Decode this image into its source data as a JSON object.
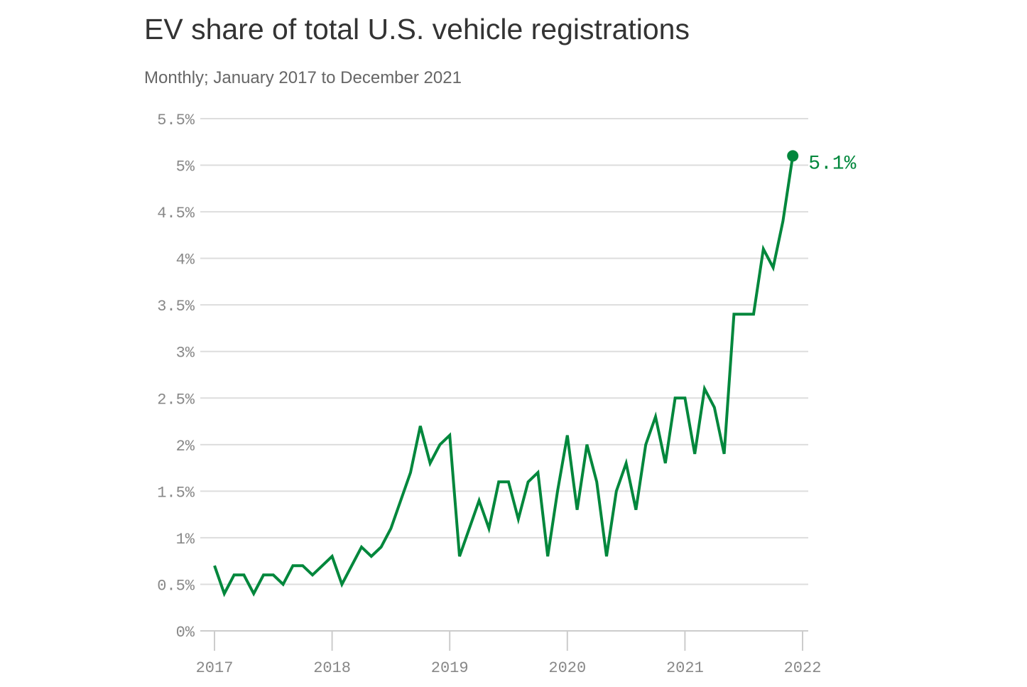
{
  "title": "EV share of total U.S. vehicle registrations",
  "subtitle": "Monthly; January 2017 to December 2021",
  "colors": {
    "line": "#00873c",
    "grid": "#dddddd",
    "axis": "#cccccc",
    "tick_text": "#888888"
  },
  "chart_data": {
    "type": "line",
    "title": "EV share of total U.S. vehicle registrations",
    "subtitle": "Monthly; January 2017 to December 2021",
    "xlabel": "",
    "ylabel": "",
    "x_ticks": [
      "2017",
      "2018",
      "2019",
      "2020",
      "2021",
      "2022"
    ],
    "y_ticks": [
      "0%",
      "0.5%",
      "1%",
      "1.5%",
      "2%",
      "2.5%",
      "3%",
      "3.5%",
      "4%",
      "4.5%",
      "5%",
      "5.5%"
    ],
    "ylim": [
      0,
      5.5
    ],
    "xlim": [
      "2017-01",
      "2022-01"
    ],
    "grid": true,
    "series": [
      {
        "values": [
          0.7,
          0.4,
          0.6,
          0.6,
          0.4,
          0.6,
          0.6,
          0.5,
          0.7,
          0.7,
          0.6,
          0.7,
          0.8,
          0.5,
          0.7,
          0.9,
          0.8,
          0.9,
          1.1,
          1.4,
          1.7,
          2.2,
          1.8,
          2.0,
          2.1,
          0.8,
          1.1,
          1.4,
          1.1,
          1.6,
          1.6,
          1.2,
          1.6,
          1.7,
          0.8,
          1.5,
          2.1,
          1.3,
          2.0,
          1.6,
          0.8,
          1.5,
          1.8,
          1.3,
          2.0,
          2.3,
          1.8,
          2.5,
          2.5,
          1.9,
          2.6,
          2.4,
          1.9,
          3.4,
          3.4,
          3.4,
          4.1,
          3.9,
          4.4,
          5.1
        ]
      }
    ],
    "end_label": "5.1%"
  }
}
